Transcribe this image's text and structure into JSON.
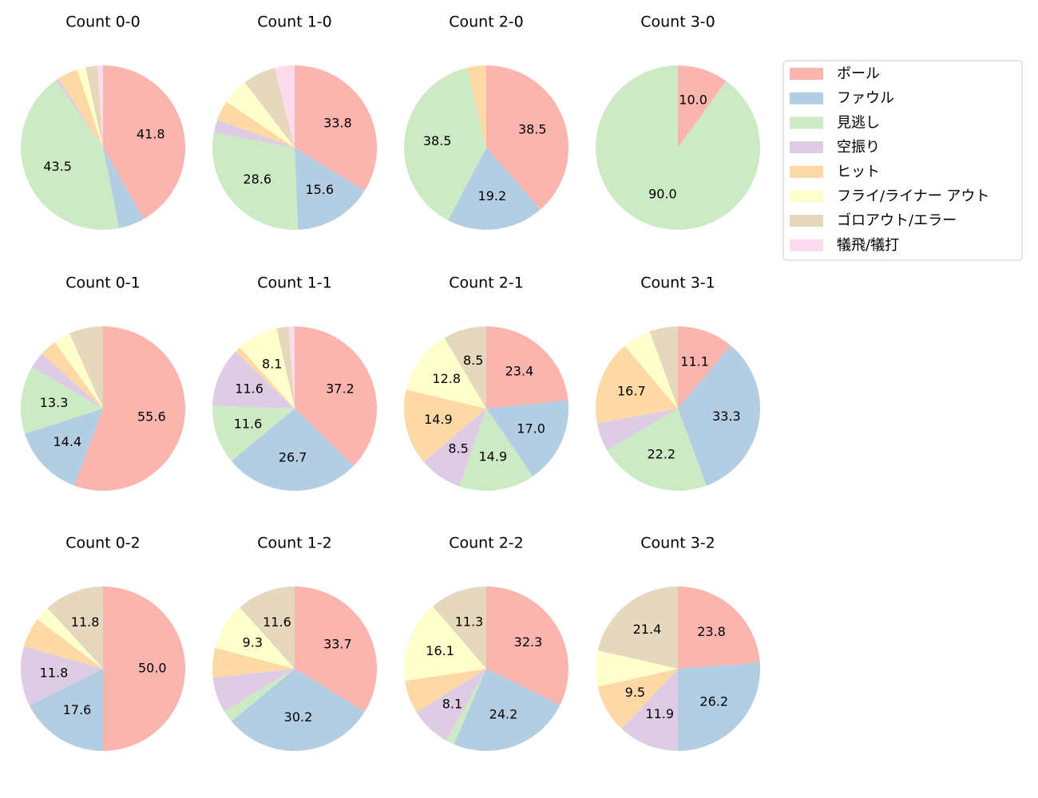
{
  "chart_data": [
    {
      "type": "pie",
      "title": "Count 0-0",
      "categories": [
        "ボール",
        "ファウル",
        "見逃し",
        "空振り",
        "ヒット",
        "フライ/ライナー アウト",
        "ゴロアウト/エラー",
        "犠飛/犠打"
      ],
      "colors": [
        "#fbb4ae",
        "#b3cde3",
        "#ccebc5",
        "#decbe4",
        "#fed9a6",
        "#ffffcc",
        "#e5d8bd",
        "#fddaec"
      ],
      "values": [
        41.8,
        5.1,
        43.5,
        0.6,
        4.0,
        1.7,
        2.3,
        1.1
      ],
      "value_labels": [
        "41.8",
        null,
        "43.5",
        null,
        null,
        null,
        null,
        null
      ]
    },
    {
      "type": "pie",
      "title": "Count 1-0",
      "categories": [
        "ボール",
        "ファウル",
        "見逃し",
        "空振り",
        "ヒット",
        "フライ/ライナー アウト",
        "ゴロアウト/エラー",
        "犠飛/犠打"
      ],
      "colors": [
        "#fbb4ae",
        "#b3cde3",
        "#ccebc5",
        "#decbe4",
        "#fed9a6",
        "#ffffcc",
        "#e5d8bd",
        "#fddaec"
      ],
      "values": [
        33.8,
        15.6,
        28.6,
        2.6,
        3.9,
        5.2,
        6.5,
        3.9
      ],
      "value_labels": [
        "33.8",
        "15.6",
        "28.6",
        null,
        null,
        null,
        null,
        null
      ]
    },
    {
      "type": "pie",
      "title": "Count 2-0",
      "categories": [
        "ボール",
        "ファウル",
        "見逃し",
        "空振り",
        "ヒット",
        "フライ/ライナー アウト",
        "ゴロアウト/エラー",
        "犠飛/犠打"
      ],
      "colors": [
        "#fbb4ae",
        "#b3cde3",
        "#ccebc5",
        "#decbe4",
        "#fed9a6",
        "#ffffcc",
        "#e5d8bd",
        "#fddaec"
      ],
      "values": [
        38.5,
        19.2,
        38.5,
        0,
        3.8,
        0,
        0,
        0
      ],
      "value_labels": [
        "38.5",
        "19.2",
        "38.5",
        null,
        null,
        null,
        null,
        null
      ]
    },
    {
      "type": "pie",
      "title": "Count 3-0",
      "categories": [
        "ボール",
        "ファウル",
        "見逃し",
        "空振り",
        "ヒット",
        "フライ/ライナー アウト",
        "ゴロアウト/エラー",
        "犠飛/犠打"
      ],
      "colors": [
        "#fbb4ae",
        "#b3cde3",
        "#ccebc5",
        "#decbe4",
        "#fed9a6",
        "#ffffcc",
        "#e5d8bd",
        "#fddaec"
      ],
      "values": [
        10.0,
        0,
        90.0,
        0,
        0,
        0,
        0,
        0
      ],
      "value_labels": [
        "10.0",
        null,
        "90.0",
        null,
        null,
        null,
        null,
        null
      ]
    },
    {
      "type": "pie",
      "title": "Count 0-1",
      "categories": [
        "ボール",
        "ファウル",
        "見逃し",
        "空振り",
        "ヒット",
        "フライ/ライナー アウト",
        "ゴロアウト/エラー",
        "犠飛/犠打"
      ],
      "colors": [
        "#fbb4ae",
        "#b3cde3",
        "#ccebc5",
        "#decbe4",
        "#fed9a6",
        "#ffffcc",
        "#e5d8bd",
        "#fddaec"
      ],
      "values": [
        55.6,
        14.4,
        13.3,
        3.3,
        3.3,
        3.3,
        6.7,
        0
      ],
      "value_labels": [
        "55.6",
        "14.4",
        "13.3",
        null,
        null,
        null,
        null,
        null
      ]
    },
    {
      "type": "pie",
      "title": "Count 1-1",
      "categories": [
        "ボール",
        "ファウル",
        "見逃し",
        "空振り",
        "ヒット",
        "フライ/ライナー アウト",
        "ゴロアウト/エラー",
        "犠飛/犠打"
      ],
      "colors": [
        "#fbb4ae",
        "#b3cde3",
        "#ccebc5",
        "#decbe4",
        "#fed9a6",
        "#ffffcc",
        "#e5d8bd",
        "#fddaec"
      ],
      "values": [
        37.2,
        26.7,
        11.6,
        11.6,
        1.2,
        8.1,
        2.3,
        1.2
      ],
      "value_labels": [
        "37.2",
        "26.7",
        "11.6",
        "11.6",
        null,
        "8.1",
        null,
        null
      ]
    },
    {
      "type": "pie",
      "title": "Count 2-1",
      "categories": [
        "ボール",
        "ファウル",
        "見逃し",
        "空振り",
        "ヒット",
        "フライ/ライナー アウト",
        "ゴロアウト/エラー",
        "犠飛/犠打"
      ],
      "colors": [
        "#fbb4ae",
        "#b3cde3",
        "#ccebc5",
        "#decbe4",
        "#fed9a6",
        "#ffffcc",
        "#e5d8bd",
        "#fddaec"
      ],
      "values": [
        23.4,
        17.0,
        14.9,
        8.5,
        14.9,
        12.8,
        8.5,
        0
      ],
      "value_labels": [
        "23.4",
        "17.0",
        "14.9",
        "8.5",
        "14.9",
        "12.8",
        "8.5",
        null
      ]
    },
    {
      "type": "pie",
      "title": "Count 3-1",
      "categories": [
        "ボール",
        "ファウル",
        "見逃し",
        "空振り",
        "ヒット",
        "フライ/ライナー アウト",
        "ゴロアウト/エラー",
        "犠飛/犠打"
      ],
      "colors": [
        "#fbb4ae",
        "#b3cde3",
        "#ccebc5",
        "#decbe4",
        "#fed9a6",
        "#ffffcc",
        "#e5d8bd",
        "#fddaec"
      ],
      "values": [
        11.1,
        33.3,
        22.2,
        5.6,
        16.7,
        5.6,
        5.6,
        0
      ],
      "value_labels": [
        "11.1",
        "33.3",
        "22.2",
        null,
        "16.7",
        null,
        null,
        null
      ]
    },
    {
      "type": "pie",
      "title": "Count 0-2",
      "categories": [
        "ボール",
        "ファウル",
        "見逃し",
        "空振り",
        "ヒット",
        "フライ/ライナー アウト",
        "ゴロアウト/エラー",
        "犠飛/犠打"
      ],
      "colors": [
        "#fbb4ae",
        "#b3cde3",
        "#ccebc5",
        "#decbe4",
        "#fed9a6",
        "#ffffcc",
        "#e5d8bd",
        "#fddaec"
      ],
      "values": [
        50.0,
        17.6,
        0,
        11.8,
        5.9,
        2.9,
        11.8,
        0
      ],
      "value_labels": [
        "50.0",
        "17.6",
        null,
        "11.8",
        null,
        null,
        "11.8",
        null
      ]
    },
    {
      "type": "pie",
      "title": "Count 1-2",
      "categories": [
        "ボール",
        "ファウル",
        "見逃し",
        "空振り",
        "ヒット",
        "フライ/ライナー アウト",
        "ゴロアウト/エラー",
        "犠飛/犠打"
      ],
      "colors": [
        "#fbb4ae",
        "#b3cde3",
        "#ccebc5",
        "#decbe4",
        "#fed9a6",
        "#ffffcc",
        "#e5d8bd",
        "#fddaec"
      ],
      "values": [
        33.7,
        30.2,
        2.3,
        7.0,
        5.8,
        9.3,
        11.6,
        0
      ],
      "value_labels": [
        "33.7",
        "30.2",
        null,
        null,
        null,
        "9.3",
        "11.6",
        null
      ]
    },
    {
      "type": "pie",
      "title": "Count 2-2",
      "categories": [
        "ボール",
        "ファウル",
        "見逃し",
        "空振り",
        "ヒット",
        "フライ/ライナー アウト",
        "ゴロアウト/エラー",
        "犠飛/犠打"
      ],
      "colors": [
        "#fbb4ae",
        "#b3cde3",
        "#ccebc5",
        "#decbe4",
        "#fed9a6",
        "#ffffcc",
        "#e5d8bd",
        "#fddaec"
      ],
      "values": [
        32.3,
        24.2,
        1.6,
        8.1,
        6.5,
        16.1,
        11.3,
        0
      ],
      "value_labels": [
        "32.3",
        "24.2",
        null,
        "8.1",
        null,
        "16.1",
        "11.3",
        null
      ]
    },
    {
      "type": "pie",
      "title": "Count 3-2",
      "categories": [
        "ボール",
        "ファウル",
        "見逃し",
        "空振り",
        "ヒット",
        "フライ/ライナー アウト",
        "ゴロアウト/エラー",
        "犠飛/犠打"
      ],
      "colors": [
        "#fbb4ae",
        "#b3cde3",
        "#ccebc5",
        "#decbe4",
        "#fed9a6",
        "#ffffcc",
        "#e5d8bd",
        "#fddaec"
      ],
      "values": [
        23.8,
        26.2,
        0,
        11.9,
        9.5,
        7.1,
        21.4,
        0
      ],
      "value_labels": [
        "23.8",
        "26.2",
        null,
        "11.9",
        "9.5",
        null,
        "21.4",
        null
      ]
    }
  ]
}
